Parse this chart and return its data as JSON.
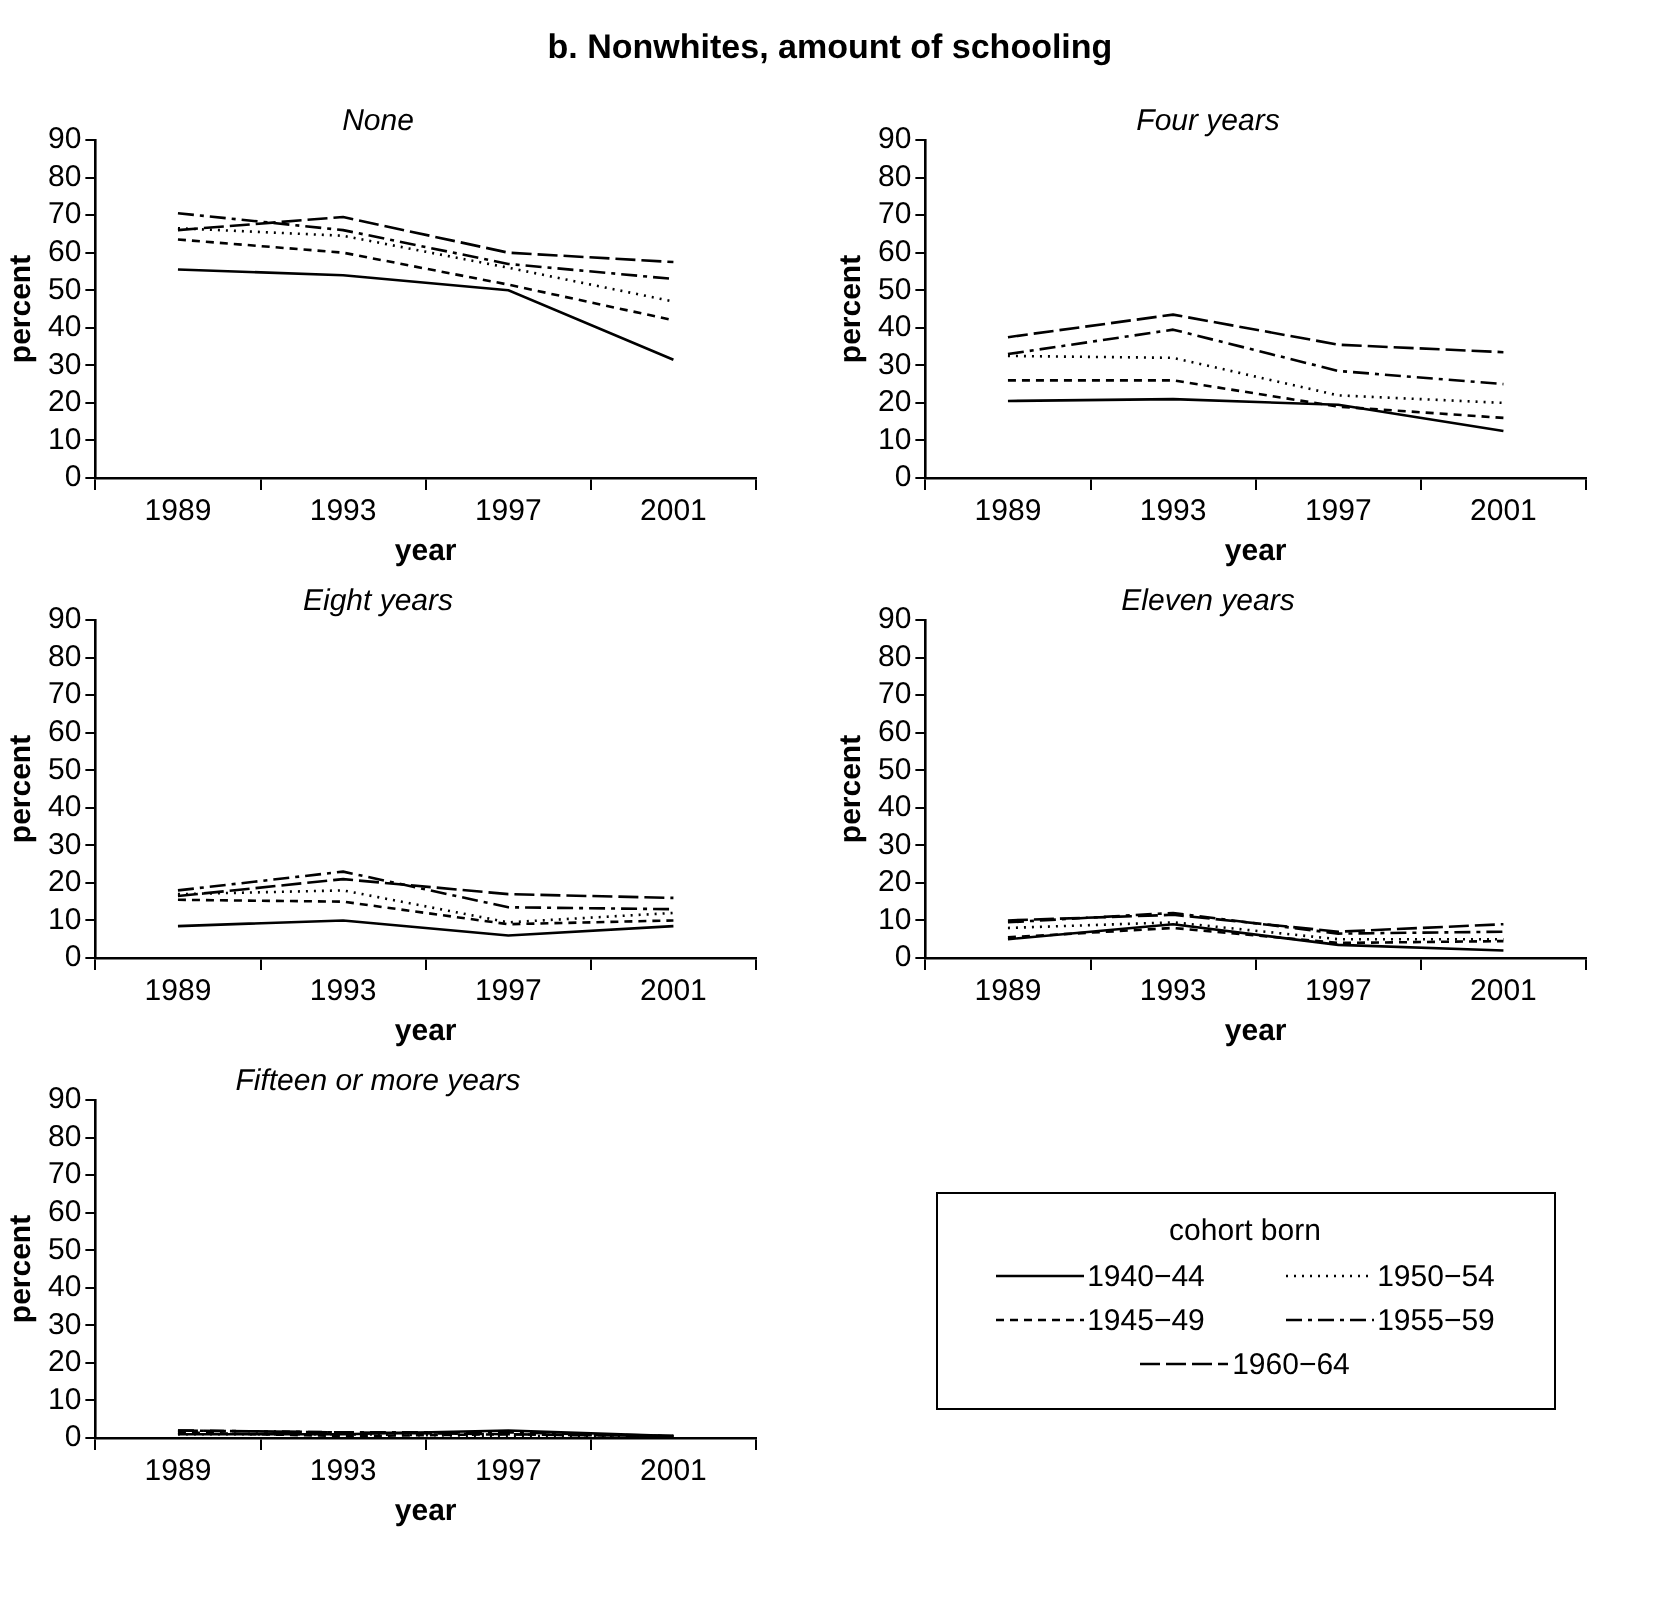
{
  "chart_data": [
    {
      "type": "line",
      "title": "b. Nonwhites, amount of schooling",
      "subtitle": "None",
      "xlabel": "year",
      "ylabel": "percent",
      "categories": [
        "1989",
        "1993",
        "1997",
        "2001"
      ],
      "ylim": [
        0,
        90
      ],
      "yticks": [
        0,
        10,
        20,
        30,
        40,
        50,
        60,
        70,
        80,
        90
      ],
      "grid": false,
      "legend": false,
      "marker": "none",
      "series": [
        {
          "color": "#000000",
          "line_style": "solid",
          "values": [
            55.5,
            54,
            50,
            31.5
          ]
        },
        {
          "color": "#000000",
          "line_style": "dashed",
          "values": [
            63.5,
            60,
            51.5,
            42
          ]
        },
        {
          "color": "#000000",
          "line_style": "dotted",
          "values": [
            66.5,
            64.5,
            56,
            47
          ]
        },
        {
          "color": "#000000",
          "line_style": "dashed",
          "values": [
            70.5,
            66,
            57,
            53
          ]
        },
        {
          "color": "#000000",
          "line_style": "dashed",
          "values": [
            66,
            69.5,
            60,
            57.5
          ]
        }
      ]
    },
    {
      "type": "line",
      "subtitle": "Four years",
      "xlabel": "year",
      "ylabel": "percent",
      "categories": [
        "1989",
        "1993",
        "1997",
        "2001"
      ],
      "ylim": [
        0,
        90
      ],
      "yticks": [
        0,
        10,
        20,
        30,
        40,
        50,
        60,
        70,
        80,
        90
      ],
      "grid": false,
      "legend": false,
      "marker": "none",
      "series": [
        {
          "color": "#000000",
          "line_style": "solid",
          "values": [
            20.5,
            21,
            19.5,
            12.5
          ]
        },
        {
          "color": "#000000",
          "line_style": "dashed",
          "values": [
            26,
            26,
            19,
            16
          ]
        },
        {
          "color": "#000000",
          "line_style": "dotted",
          "values": [
            32.5,
            32,
            22,
            20
          ]
        },
        {
          "color": "#000000",
          "line_style": "dashed",
          "values": [
            33,
            39.5,
            28.5,
            25
          ]
        },
        {
          "color": "#000000",
          "line_style": "dashed",
          "values": [
            37.5,
            43.5,
            35.5,
            33.5
          ]
        }
      ]
    },
    {
      "type": "line",
      "subtitle": "Eight years",
      "xlabel": "year",
      "ylabel": "percent",
      "categories": [
        "1989",
        "1993",
        "1997",
        "2001"
      ],
      "ylim": [
        0,
        90
      ],
      "yticks": [
        0,
        10,
        20,
        30,
        40,
        50,
        60,
        70,
        80,
        90
      ],
      "grid": false,
      "legend": false,
      "marker": "none",
      "series": [
        {
          "color": "#000000",
          "line_style": "solid",
          "values": [
            8.5,
            10,
            6,
            8.5
          ]
        },
        {
          "color": "#000000",
          "line_style": "dashed",
          "values": [
            15.5,
            15,
            9,
            10
          ]
        },
        {
          "color": "#000000",
          "line_style": "dotted",
          "values": [
            17,
            18,
            9.5,
            12
          ]
        },
        {
          "color": "#000000",
          "line_style": "dashed",
          "values": [
            18,
            23,
            13.5,
            13
          ]
        },
        {
          "color": "#000000",
          "line_style": "dashed",
          "values": [
            16.5,
            21,
            17,
            16
          ]
        }
      ]
    },
    {
      "type": "line",
      "subtitle": "Eleven years",
      "xlabel": "year",
      "ylabel": "percent",
      "categories": [
        "1989",
        "1993",
        "1997",
        "2001"
      ],
      "ylim": [
        0,
        90
      ],
      "yticks": [
        0,
        10,
        20,
        30,
        40,
        50,
        60,
        70,
        80,
        90
      ],
      "grid": false,
      "legend": false,
      "marker": "none",
      "series": [
        {
          "color": "#000000",
          "line_style": "solid",
          "values": [
            5,
            9,
            3.5,
            2
          ]
        },
        {
          "color": "#000000",
          "line_style": "dashed",
          "values": [
            5.5,
            8,
            4,
            4.5
          ]
        },
        {
          "color": "#000000",
          "line_style": "dotted",
          "values": [
            8,
            9.5,
            5,
            5
          ]
        },
        {
          "color": "#000000",
          "line_style": "dashed",
          "values": [
            9.5,
            12,
            6.5,
            7
          ]
        },
        {
          "color": "#000000",
          "line_style": "dashed",
          "values": [
            10,
            11.5,
            7,
            9
          ]
        }
      ]
    },
    {
      "type": "line",
      "subtitle": "Fifteen or more years",
      "xlabel": "year",
      "ylabel": "percent",
      "categories": [
        "1989",
        "1993",
        "1997",
        "2001"
      ],
      "ylim": [
        0,
        90
      ],
      "yticks": [
        0,
        10,
        20,
        30,
        40,
        50,
        60,
        70,
        80,
        90
      ],
      "grid": false,
      "legend": "right",
      "legend_title": "cohort born",
      "marker": "none",
      "series": [
        {
          "name": "1940−44",
          "color": "#000000",
          "line_style": "solid",
          "values": [
            1,
            1,
            2,
            0.5
          ]
        },
        {
          "name": "1945−49",
          "color": "#000000",
          "line_style": "dashed",
          "values": [
            1.5,
            0.5,
            1,
            0.5
          ]
        },
        {
          "name": "1950−54",
          "color": "#000000",
          "line_style": "dotted",
          "values": [
            1,
            1,
            0.5,
            0.5
          ]
        },
        {
          "name": "1955−59",
          "color": "#000000",
          "line_style": "dashed",
          "values": [
            2,
            1.5,
            1.5,
            0.5
          ]
        },
        {
          "name": "1960−64",
          "color": "#000000",
          "line_style": "dashed",
          "values": [
            2,
            1.5,
            1,
            0.5
          ]
        }
      ]
    }
  ]
}
